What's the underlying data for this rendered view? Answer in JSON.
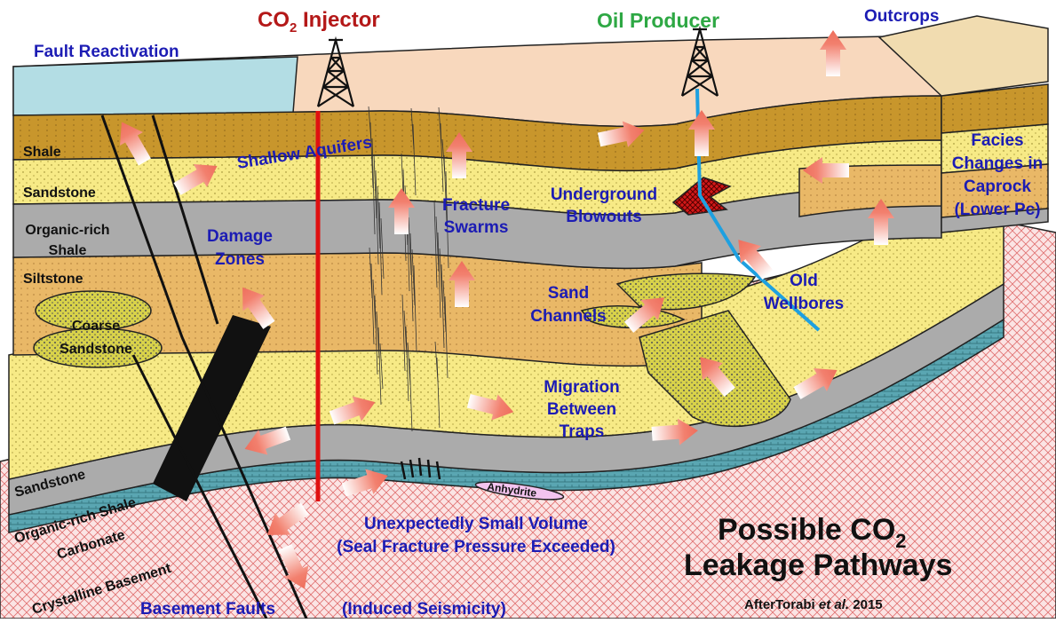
{
  "wells": {
    "injector": {
      "name_prefix": "CO",
      "name_subscript": "2",
      "name_suffix": " Injector"
    },
    "producer": "Oil Producer"
  },
  "pathways": {
    "outcrops": "Outcrops",
    "fault_reactivation": "Fault Reactivation",
    "facies_changes": [
      "Facies",
      "Changes in",
      "Caprock",
      "(Lower Pc)"
    ],
    "shallow_aquifers": "Shallow Aquifers",
    "fracture_swarms": [
      "Fracture",
      "Swarms"
    ],
    "underground_blowouts": [
      "Underground",
      "Blowouts"
    ],
    "damage_zones": [
      "Damage",
      "Zones"
    ],
    "sand_channels": [
      "Sand",
      "Channels"
    ],
    "old_wellbores": [
      "Old",
      "Wellbores"
    ],
    "migration_between_traps": [
      "Migration",
      "Between",
      "Traps"
    ],
    "small_volume": [
      "Unexpectedly Small Volume",
      "(Seal Fracture Pressure Exceeded)"
    ],
    "basement_faults": "Basement Faults",
    "induced_seismicity": "(Induced Seismicity)"
  },
  "layers": {
    "upper": {
      "shale": "Shale",
      "sandstone": "Sandstone",
      "organic_rich_shale": [
        "Organic-rich",
        "Shale"
      ],
      "siltstone": "Siltstone",
      "coarse_sandstone": [
        "Coarse",
        "Sandstone"
      ]
    },
    "lower": {
      "sandstone": "Sandstone",
      "organic_rich_shale": "Organic-rich Shale",
      "carbonate": "Carbonate",
      "crystalline_basement": "Crystalline Basement",
      "anhydrite": "Anhydrite"
    }
  },
  "title": {
    "line1_main": "Possible CO",
    "line1_subscript": "2",
    "line2": "Leakage Pathways"
  },
  "credit": {
    "before": "AfterTorabi ",
    "italic": "et al.",
    "after": " 2015"
  }
}
